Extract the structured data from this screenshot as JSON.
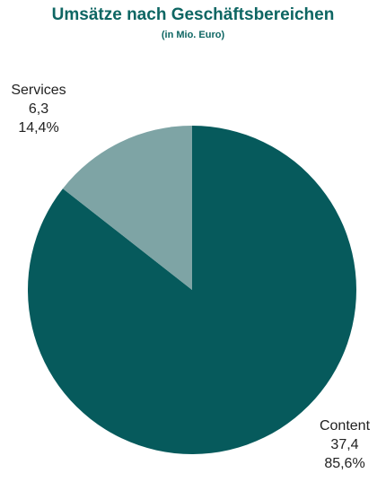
{
  "chart_data": {
    "type": "pie",
    "title": "Umsätze nach Geschäftsbereichen",
    "subtitle": "(in Mio. Euro)",
    "slices": [
      {
        "name": "Content",
        "value": 37.4,
        "value_label": "37,4",
        "percent_label": "85,6%",
        "color": "#065a5c"
      },
      {
        "name": "Services",
        "value": 6.3,
        "value_label": "6,3",
        "percent_label": "14,4%",
        "color": "#7ea4a5"
      }
    ],
    "start_angle": "top",
    "direction": "clockwise"
  }
}
